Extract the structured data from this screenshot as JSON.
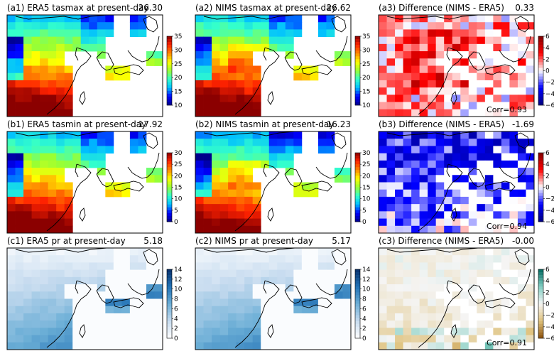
{
  "panels": [
    {
      "title": "(a1) ERA5 tasmax at present-day",
      "value": "26.30",
      "scale": "temp",
      "ticks": [
        "35",
        "30",
        "25",
        "20",
        "15",
        "10"
      ],
      "corr": ""
    },
    {
      "title": "(a2) NIMS tasmax at present-day",
      "value": "26.62",
      "scale": "temp",
      "ticks": [
        "35",
        "30",
        "25",
        "20",
        "15",
        "10"
      ],
      "corr": ""
    },
    {
      "title": "(a3) Difference (NIMS - ERA5)",
      "value": "0.33",
      "scale": "diff",
      "ticks": [
        "6",
        "4",
        "2",
        "0",
        "−2",
        "−4",
        "−6"
      ],
      "corr": "Corr=0.93"
    },
    {
      "title": "(b1) ERA5 tasmin at present-day",
      "value": "17.92",
      "scale": "temp",
      "ticks": [
        "30",
        "25",
        "20",
        "15",
        "10",
        "5",
        "0"
      ],
      "corr": ""
    },
    {
      "title": "(b2) NIMS tasmin at present-day",
      "value": "16.23",
      "scale": "temp",
      "ticks": [
        "30",
        "25",
        "20",
        "15",
        "10",
        "5",
        "0"
      ],
      "corr": ""
    },
    {
      "title": "(b3) Difference (NIMS - ERA5)",
      "value": "-1.69",
      "scale": "diff",
      "ticks": [
        "6",
        "4",
        "2",
        "0",
        "−2",
        "−4",
        "−6"
      ],
      "corr": "Corr=0.94"
    },
    {
      "title": "(c1) ERA5 pr at present-day",
      "value": "5.18",
      "scale": "precip",
      "ticks": [
        "14",
        "12",
        "10",
        "8",
        "6",
        "4",
        "2",
        "0"
      ],
      "corr": ""
    },
    {
      "title": "(c2) NIMS pr at present-day",
      "value": "5.17",
      "scale": "precip",
      "ticks": [
        "14",
        "12",
        "10",
        "8",
        "6",
        "4",
        "2",
        "0"
      ],
      "corr": ""
    },
    {
      "title": "(c3) Difference (NIMS - ERA5)",
      "value": "-0.00",
      "scale": "diff_pr",
      "ticks": [
        "6",
        "4",
        "2",
        "0",
        "−2",
        "−4",
        "−6"
      ],
      "corr": "Corr=0.91"
    }
  ],
  "colors": {
    "temp": [
      "#00008b",
      "#0000ff",
      "#00bfff",
      "#33ffcc",
      "#99ff33",
      "#ffff00",
      "#ff8800",
      "#ff2200",
      "#8b0000"
    ],
    "diff": [
      "#00007f",
      "#0000ff",
      "#ffffff",
      "#ff0000",
      "#7f0000"
    ],
    "precip": [
      "#ffffff",
      "#c6dbef",
      "#6baed6",
      "#2171b5",
      "#08306b"
    ],
    "diff_pr": [
      "#8c510a",
      "#dfc27d",
      "#f5f5f5",
      "#80cdc1",
      "#01665e"
    ]
  },
  "chart_data": {
    "type": "heatmap",
    "panels": [
      {
        "title": "(a1) ERA5 tasmax at present-day",
        "area_mean": 26.3,
        "colorbar_range": [
          10,
          35
        ]
      },
      {
        "title": "(a2) NIMS tasmax at present-day",
        "area_mean": 26.62,
        "colorbar_range": [
          10,
          35
        ]
      },
      {
        "title": "(a3) Difference (NIMS - ERA5)",
        "area_mean": 0.33,
        "corr": 0.93,
        "colorbar_range": [
          -6,
          6
        ]
      },
      {
        "title": "(b1) ERA5 tasmin at present-day",
        "area_mean": 17.92,
        "colorbar_range": [
          0,
          30
        ]
      },
      {
        "title": "(b2) NIMS tasmin at present-day",
        "area_mean": 16.23,
        "colorbar_range": [
          0,
          30
        ]
      },
      {
        "title": "(b3) Difference (NIMS - ERA5)",
        "area_mean": -1.69,
        "corr": 0.94,
        "colorbar_range": [
          -6,
          6
        ]
      },
      {
        "title": "(c1) ERA5 pr at present-day",
        "area_mean": 5.18,
        "colorbar_range": [
          0,
          14
        ]
      },
      {
        "title": "(c2) NIMS pr at present-day",
        "area_mean": 5.17,
        "colorbar_range": [
          0,
          14
        ]
      },
      {
        "title": "(c3) Difference (NIMS - ERA5)",
        "area_mean": -0.0,
        "corr": 0.91,
        "colorbar_range": [
          -6,
          6
        ]
      }
    ]
  }
}
